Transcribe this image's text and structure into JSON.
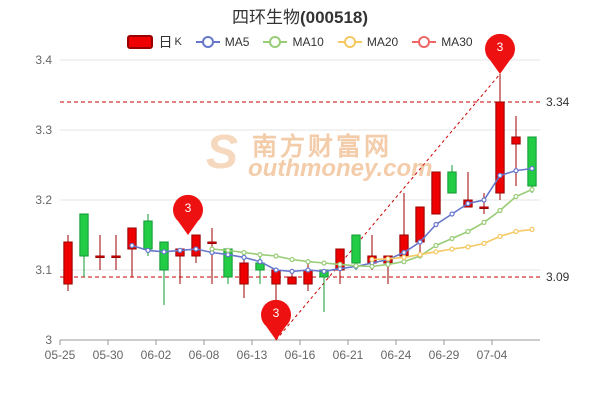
{
  "title": {
    "name": "四环生物",
    "code": "(000518)"
  },
  "legend": {
    "k_label": "日",
    "k_sub": "K",
    "ma5": "MA5",
    "ma10": "MA10",
    "ma20": "MA20",
    "ma30": "MA30"
  },
  "watermark": {
    "logo": "S",
    "cn": "南方财富网",
    "en": "outhmoney.com"
  },
  "colors": {
    "up": "#ee0000",
    "up_border": "#990000",
    "down": "#22cc44",
    "down_border": "#119933",
    "flat": "#009999",
    "ma5": "#6677cc",
    "ma10": "#99cc77",
    "ma20": "#f5c862",
    "ma30": "#ee6666",
    "refline": "#cc0000",
    "trend": "#cc0000",
    "marker": "#ee1111"
  },
  "chart_data": {
    "type": "candlestick",
    "ylim": [
      3.0,
      3.4
    ],
    "yticks": [
      "3",
      "3.1",
      "3.2",
      "3.3",
      "3.4"
    ],
    "xtick_labels": [
      "05-25",
      "05-30",
      "06-02",
      "06-08",
      "06-13",
      "06-16",
      "06-21",
      "06-24",
      "06-29",
      "07-04"
    ],
    "xtick_indices": [
      0,
      3,
      6,
      9,
      12,
      15,
      18,
      21,
      24,
      27
    ],
    "candles": [
      {
        "o": 3.08,
        "c": 3.14,
        "h": 3.15,
        "l": 3.07
      },
      {
        "o": 3.18,
        "c": 3.12,
        "h": 3.18,
        "l": 3.09
      },
      {
        "o": 3.12,
        "c": 3.12,
        "h": 3.15,
        "l": 3.1
      },
      {
        "o": 3.12,
        "c": 3.12,
        "h": 3.15,
        "l": 3.1
      },
      {
        "o": 3.13,
        "c": 3.16,
        "h": 3.16,
        "l": 3.09
      },
      {
        "o": 3.17,
        "c": 3.13,
        "h": 3.18,
        "l": 3.12
      },
      {
        "o": 3.14,
        "c": 3.1,
        "h": 3.14,
        "l": 3.05
      },
      {
        "o": 3.12,
        "c": 3.13,
        "h": 3.13,
        "l": 3.08
      },
      {
        "o": 3.12,
        "c": 3.15,
        "h": 3.15,
        "l": 3.11
      },
      {
        "o": 3.14,
        "c": 3.14,
        "h": 3.16,
        "l": 3.08
      },
      {
        "o": 3.13,
        "c": 3.09,
        "h": 3.13,
        "l": 3.08
      },
      {
        "o": 3.08,
        "c": 3.11,
        "h": 3.12,
        "l": 3.06
      },
      {
        "o": 3.11,
        "c": 3.1,
        "h": 3.12,
        "l": 3.08
      },
      {
        "o": 3.08,
        "c": 3.1,
        "h": 3.1,
        "l": 3.0
      },
      {
        "o": 3.08,
        "c": 3.09,
        "h": 3.1,
        "l": 3.08
      },
      {
        "o": 3.08,
        "c": 3.1,
        "h": 3.11,
        "l": 3.07
      },
      {
        "o": 3.1,
        "c": 3.09,
        "h": 3.1,
        "l": 3.04
      },
      {
        "o": 3.1,
        "c": 3.13,
        "h": 3.13,
        "l": 3.08
      },
      {
        "o": 3.15,
        "c": 3.11,
        "h": 3.15,
        "l": 3.1
      },
      {
        "o": 3.11,
        "c": 3.12,
        "h": 3.15,
        "l": 3.1
      },
      {
        "o": 3.11,
        "c": 3.12,
        "h": 3.12,
        "l": 3.08
      },
      {
        "o": 3.12,
        "c": 3.15,
        "h": 3.21,
        "l": 3.11
      },
      {
        "o": 3.14,
        "c": 3.19,
        "h": 3.19,
        "l": 3.12
      },
      {
        "o": 3.18,
        "c": 3.24,
        "h": 3.24,
        "l": 3.18
      },
      {
        "o": 3.24,
        "c": 3.21,
        "h": 3.25,
        "l": 3.21
      },
      {
        "o": 3.19,
        "c": 3.2,
        "h": 3.24,
        "l": 3.19
      },
      {
        "o": 3.19,
        "c": 3.19,
        "h": 3.21,
        "l": 3.18
      },
      {
        "o": 3.21,
        "c": 3.34,
        "h": 3.38,
        "l": 3.2
      },
      {
        "o": 3.28,
        "c": 3.29,
        "h": 3.32,
        "l": 3.22
      },
      {
        "o": 3.29,
        "c": 3.22,
        "h": 3.29,
        "l": 3.21
      }
    ],
    "series": [
      {
        "name": "MA5",
        "values": [
          null,
          null,
          null,
          null,
          3.135,
          3.128,
          3.126,
          3.128,
          3.13,
          3.125,
          3.122,
          3.118,
          3.112,
          3.1,
          3.098,
          3.1,
          3.098,
          3.102,
          3.105,
          3.11,
          3.115,
          3.125,
          3.14,
          3.165,
          3.18,
          3.195,
          3.2,
          3.235,
          3.242,
          3.245
        ]
      },
      {
        "name": "MA10",
        "values": [
          null,
          null,
          null,
          null,
          null,
          null,
          null,
          null,
          null,
          3.13,
          3.128,
          3.125,
          3.122,
          3.12,
          3.115,
          3.112,
          3.11,
          3.108,
          3.106,
          3.105,
          3.108,
          3.112,
          3.12,
          3.135,
          3.145,
          3.155,
          3.168,
          3.185,
          3.205,
          3.215
        ]
      },
      {
        "name": "MA20",
        "values": [
          null,
          null,
          null,
          null,
          null,
          null,
          null,
          null,
          null,
          null,
          null,
          null,
          null,
          null,
          null,
          null,
          null,
          null,
          null,
          3.115,
          3.116,
          3.118,
          3.122,
          3.126,
          3.13,
          3.133,
          3.138,
          3.148,
          3.155,
          3.158
        ]
      }
    ],
    "reference_lines": [
      {
        "value": 3.34,
        "label": "3.34"
      },
      {
        "value": 3.09,
        "label": "3.09"
      }
    ],
    "markers": [
      {
        "index": 7.5,
        "value": 3.15,
        "label": "3"
      },
      {
        "index": 13,
        "value": 3.0,
        "label": "3",
        "below": true
      },
      {
        "index": 27,
        "value": 3.38,
        "label": "3"
      }
    ],
    "trendline": {
      "from": {
        "index": 13,
        "value": 3.0
      },
      "to": {
        "index": 27,
        "value": 3.38
      }
    }
  }
}
